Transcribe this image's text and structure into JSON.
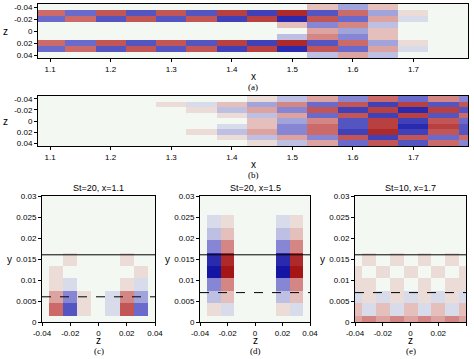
{
  "chart_data": [
    {
      "type": "heatmap",
      "caption": "(a)",
      "x_label": "x",
      "y_label": "z",
      "x": [
        1.1,
        1.15,
        1.2,
        1.25,
        1.3,
        1.35,
        1.4,
        1.45,
        1.5,
        1.55,
        1.6,
        1.65,
        1.7,
        1.75,
        1.8
      ],
      "y": [
        -0.04,
        -0.03,
        -0.02,
        -0.01,
        0,
        0.01,
        0.02,
        0.03,
        0.04
      ],
      "cells": [
        [
          0,
          0,
          0,
          0,
          0,
          0,
          0,
          0,
          0,
          0.2,
          -0.3,
          0.2,
          0,
          0,
          0
        ],
        [
          0.5,
          -0.5,
          0.6,
          -0.6,
          0.6,
          -0.6,
          0.7,
          -0.7,
          0.8,
          -0.6,
          0.5,
          -0.3,
          0.1,
          0,
          0
        ],
        [
          -0.5,
          0.5,
          -0.6,
          0.6,
          -0.6,
          0.6,
          -0.7,
          0.7,
          -0.8,
          0.6,
          -0.5,
          0.3,
          -0.1,
          0,
          0
        ],
        [
          0,
          0,
          0,
          0,
          0,
          0,
          0,
          0,
          0.2,
          -0.4,
          0.4,
          -0.2,
          0,
          0,
          0
        ],
        [
          0,
          0,
          0,
          0,
          0,
          0,
          0,
          0,
          0,
          0.3,
          -0.3,
          0.2,
          0,
          0,
          0
        ],
        [
          0,
          0,
          0,
          0,
          0,
          0,
          0,
          0,
          -0.2,
          0.4,
          -0.4,
          0.2,
          0,
          0,
          0
        ],
        [
          0.5,
          -0.5,
          0.6,
          -0.6,
          0.6,
          -0.6,
          0.7,
          -0.7,
          0.8,
          -0.6,
          0.5,
          -0.3,
          0.1,
          0,
          0
        ],
        [
          -0.5,
          0.5,
          -0.6,
          0.6,
          -0.6,
          0.6,
          -0.7,
          0.7,
          -0.8,
          0.6,
          -0.5,
          0.3,
          -0.1,
          0,
          0
        ],
        [
          0,
          0,
          0,
          0,
          0,
          0,
          0,
          0,
          0,
          -0.2,
          0.3,
          -0.2,
          0,
          0,
          0
        ]
      ],
      "color_range": [
        -1,
        1
      ],
      "xlim": [
        1.08,
        1.79
      ],
      "xticks": [
        1.1,
        1.2,
        1.3,
        1.4,
        1.5,
        1.6,
        1.7
      ],
      "ylim": [
        0.045,
        -0.045
      ],
      "yticks": [
        -0.04,
        -0.02,
        0,
        0.02,
        0.04
      ]
    },
    {
      "type": "heatmap",
      "caption": "(b)",
      "x_label": "x",
      "y_label": "z",
      "x": [
        1.1,
        1.15,
        1.2,
        1.25,
        1.3,
        1.35,
        1.4,
        1.45,
        1.5,
        1.55,
        1.6,
        1.65,
        1.7,
        1.75,
        1.8
      ],
      "y": [
        -0.04,
        -0.03,
        -0.02,
        -0.01,
        0,
        0.01,
        0.02,
        0.03,
        0.04
      ],
      "cells": [
        [
          0,
          0,
          0,
          0,
          0,
          0,
          0,
          0.1,
          -0.2,
          0.3,
          -0.4,
          0.5,
          -0.5,
          0.4,
          -0.4
        ],
        [
          0,
          0,
          0,
          0,
          0.1,
          -0.1,
          0.2,
          -0.3,
          0.4,
          -0.5,
          0.6,
          -0.7,
          0.7,
          -0.6,
          0.6
        ],
        [
          0,
          0,
          0,
          0,
          0,
          0.1,
          -0.2,
          0.3,
          -0.4,
          0.6,
          -0.7,
          0.7,
          -0.8,
          0.7,
          -0.6
        ],
        [
          0,
          0,
          0,
          0,
          0,
          0,
          0.1,
          -0.2,
          0.3,
          -0.5,
          0.6,
          -0.7,
          0.7,
          -0.6,
          0.5
        ],
        [
          0,
          0,
          0,
          0,
          0,
          0,
          0,
          0.2,
          -0.3,
          0.4,
          -0.6,
          0.7,
          -0.7,
          0.6,
          -0.5
        ],
        [
          0,
          0,
          0,
          0,
          0,
          0,
          -0.1,
          0.2,
          -0.4,
          0.5,
          -0.6,
          0.7,
          -0.8,
          0.7,
          -0.6
        ],
        [
          0,
          0,
          0,
          0,
          0,
          0.1,
          -0.2,
          0.3,
          -0.4,
          0.5,
          -0.7,
          0.8,
          -0.7,
          0.6,
          -0.6
        ],
        [
          0,
          0,
          0,
          0,
          0,
          0,
          0.1,
          -0.2,
          0.3,
          -0.4,
          0.6,
          -0.7,
          0.6,
          -0.5,
          0.5
        ],
        [
          0,
          0,
          0,
          0,
          0,
          0,
          0,
          0.1,
          -0.2,
          0.3,
          -0.5,
          0.6,
          -0.6,
          0.5,
          -0.4
        ]
      ],
      "color_range": [
        -1,
        1
      ],
      "xlim": [
        1.08,
        1.79
      ],
      "xticks": [
        1.1,
        1.2,
        1.3,
        1.4,
        1.5,
        1.6,
        1.7
      ],
      "ylim": [
        0.045,
        -0.045
      ],
      "yticks": [
        -0.04,
        -0.02,
        0,
        0.02,
        0.04
      ]
    },
    {
      "type": "heatmap",
      "title": "St=20, x=1.1",
      "caption": "(c)",
      "x_label": "z",
      "y_label": "y",
      "x": [
        -0.04,
        -0.03,
        -0.02,
        -0.01,
        0,
        0.01,
        0.02,
        0.03,
        0.04
      ],
      "y": [
        0,
        0.003,
        0.006,
        0.009,
        0.012,
        0.015,
        0.018,
        0.021,
        0.024,
        0.027,
        0.03
      ],
      "cells": [
        [
          0,
          0,
          0,
          0,
          0,
          0,
          0,
          0,
          0
        ],
        [
          0,
          0.5,
          -0.6,
          0.1,
          0,
          -0.1,
          0.6,
          -0.5,
          0
        ],
        [
          0,
          0.3,
          -0.4,
          0.1,
          0,
          -0.1,
          0.4,
          -0.3,
          0
        ],
        [
          0,
          0.1,
          -0.1,
          0,
          0,
          0,
          0.1,
          -0.1,
          0
        ],
        [
          0,
          0.1,
          0,
          0,
          0,
          0,
          0,
          0.1,
          0
        ],
        [
          0,
          0,
          0.1,
          0,
          0,
          0,
          0.1,
          0,
          0
        ],
        [
          0,
          0,
          0,
          0,
          0,
          0,
          0,
          0,
          0
        ],
        [
          0,
          0,
          0,
          0,
          0,
          0,
          0,
          0,
          0
        ],
        [
          0,
          0,
          0,
          0,
          0,
          0,
          0,
          0,
          0
        ],
        [
          0,
          0,
          0,
          0,
          0,
          0,
          0,
          0,
          0
        ],
        [
          0,
          0,
          0,
          0,
          0,
          0,
          0,
          0,
          0
        ]
      ],
      "color_range": [
        -1,
        1
      ],
      "lines": [
        {
          "y": 0.016,
          "line_style": "solid"
        },
        {
          "y": 0.006,
          "line_style": "dash"
        }
      ],
      "xlim": [
        -0.04,
        0.04
      ],
      "xticks": [
        -0.04,
        -0.02,
        0,
        0.02,
        0.04
      ],
      "ylim": [
        0,
        0.03
      ],
      "yticks": [
        0,
        0.005,
        0.01,
        0.015,
        0.02,
        0.025,
        0.03
      ]
    },
    {
      "type": "heatmap",
      "title": "St=20, x=1.5",
      "caption": "(d)",
      "x_label": "z",
      "y_label": "y",
      "x": [
        -0.04,
        -0.03,
        -0.02,
        -0.01,
        0,
        0.01,
        0.02,
        0.03,
        0.04
      ],
      "y": [
        0,
        0.003,
        0.006,
        0.009,
        0.012,
        0.015,
        0.018,
        0.021,
        0.024,
        0.027,
        0.03
      ],
      "cells": [
        [
          0,
          0,
          0,
          0,
          0,
          0,
          0,
          0,
          0
        ],
        [
          0,
          0.1,
          -0.1,
          0,
          0,
          0,
          0.1,
          -0.1,
          0
        ],
        [
          0,
          -0.2,
          0.2,
          0,
          0,
          0,
          -0.2,
          0.2,
          0
        ],
        [
          0,
          -0.4,
          0.4,
          0,
          0,
          0,
          -0.4,
          0.4,
          0
        ],
        [
          0,
          -0.9,
          0.9,
          0,
          0,
          0,
          -0.9,
          0.9,
          0
        ],
        [
          0,
          -0.8,
          0.8,
          0,
          0,
          0,
          -0.8,
          0.8,
          0
        ],
        [
          0,
          -0.4,
          0.4,
          0,
          0,
          0,
          -0.4,
          0.4,
          0
        ],
        [
          0,
          -0.2,
          0.2,
          0,
          0,
          0,
          -0.2,
          0.2,
          0
        ],
        [
          0,
          -0.1,
          0.1,
          0,
          0,
          0,
          -0.1,
          0.1,
          0
        ],
        [
          0,
          0,
          0,
          0,
          0,
          0,
          0,
          0,
          0
        ],
        [
          0,
          0,
          0,
          0,
          0,
          0,
          0,
          0,
          0
        ]
      ],
      "color_range": [
        -1,
        1
      ],
      "lines": [
        {
          "y": 0.016,
          "line_style": "solid"
        },
        {
          "y": 0.007,
          "line_style": "dash"
        }
      ],
      "xlim": [
        -0.04,
        0.04
      ],
      "xticks": [
        -0.04,
        -0.02,
        0,
        0.02,
        0.04
      ],
      "ylim": [
        0,
        0.03
      ],
      "yticks": [
        0,
        0.005,
        0.01,
        0.015,
        0.02,
        0.025,
        0.03
      ]
    },
    {
      "type": "heatmap",
      "title": "St=10, x=1.7",
      "caption": "(e)",
      "x_label": "z",
      "y_label": "y",
      "x": [
        -0.04,
        -0.03,
        -0.02,
        -0.01,
        0,
        0.01,
        0.02,
        0.03,
        0.04
      ],
      "y": [
        0,
        0.003,
        0.006,
        0.009,
        0.012,
        0.015,
        0.018,
        0.021,
        0.024,
        0.027,
        0.03
      ],
      "cells": [
        [
          0.3,
          0.4,
          0.3,
          0.4,
          0.3,
          0.4,
          0.3,
          0.4,
          0.3
        ],
        [
          0.2,
          -0.1,
          0.2,
          -0.1,
          0.2,
          -0.1,
          0.2,
          -0.1,
          0.2
        ],
        [
          -0.1,
          0.1,
          -0.1,
          0.1,
          -0.1,
          0.1,
          -0.1,
          0.1,
          -0.1
        ],
        [
          0.1,
          0.1,
          0,
          0.1,
          0,
          0.1,
          0,
          0.1,
          0.1
        ],
        [
          0.1,
          0,
          0.1,
          0,
          0.1,
          0,
          0.1,
          0,
          0.1
        ],
        [
          0,
          0.1,
          0,
          0.1,
          0,
          0.1,
          0,
          0.1,
          0
        ],
        [
          0,
          0,
          0,
          0,
          0,
          0,
          0,
          0,
          0
        ],
        [
          0,
          0,
          0,
          0,
          0,
          0,
          0,
          0,
          0
        ],
        [
          0,
          0,
          0,
          0,
          0,
          0,
          0,
          0,
          0
        ],
        [
          0,
          0,
          0,
          0,
          0,
          0,
          0,
          0,
          0
        ],
        [
          0,
          0,
          0,
          0,
          0,
          0,
          0,
          0,
          0
        ]
      ],
      "color_range": [
        -1,
        1
      ],
      "lines": [
        {
          "y": 0.016,
          "line_style": "solid"
        },
        {
          "y": 0.007,
          "line_style": "dash"
        }
      ],
      "xlim": [
        -0.04,
        0.04
      ],
      "xticks": [
        -0.04,
        -0.02,
        0,
        0.02,
        0.04
      ],
      "ylim": [
        0,
        0.03
      ],
      "yticks": [
        0,
        0.005,
        0.01,
        0.015,
        0.02,
        0.025,
        0.03
      ]
    }
  ]
}
